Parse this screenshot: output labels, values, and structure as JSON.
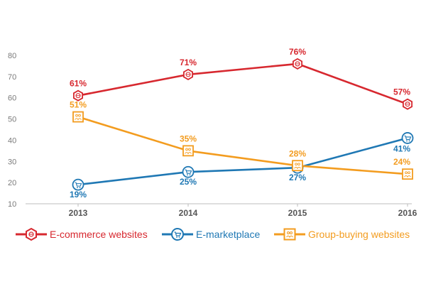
{
  "chart_data": {
    "type": "line",
    "categories": [
      "2013",
      "2014",
      "2015",
      "2016"
    ],
    "ylim": [
      10,
      80
    ],
    "yticks": [
      10,
      20,
      30,
      40,
      50,
      60,
      70,
      80
    ],
    "grid": false,
    "legend_position": "bottom",
    "series": [
      {
        "name": "E-commerce websites",
        "values": [
          61,
          71,
          76,
          57
        ],
        "labels": [
          "61%",
          "71%",
          "76%",
          "57%"
        ],
        "label_position": "above",
        "color": "#d7282f",
        "marker_icon": "web-globe-icon"
      },
      {
        "name": "E-marketplace",
        "values": [
          19,
          25,
          27,
          41
        ],
        "labels": [
          "19%",
          "25%",
          "27%",
          "41%"
        ],
        "label_position": "below",
        "color": "#1f78b4",
        "marker_icon": "shopping-cart-icon"
      },
      {
        "name": "Group-buying websites",
        "values": [
          51,
          35,
          28,
          24
        ],
        "labels": [
          "51%",
          "35%",
          "28%",
          "24%"
        ],
        "label_position": "above",
        "color": "#f39c1f",
        "marker_icon": "group-people-icon"
      }
    ]
  }
}
